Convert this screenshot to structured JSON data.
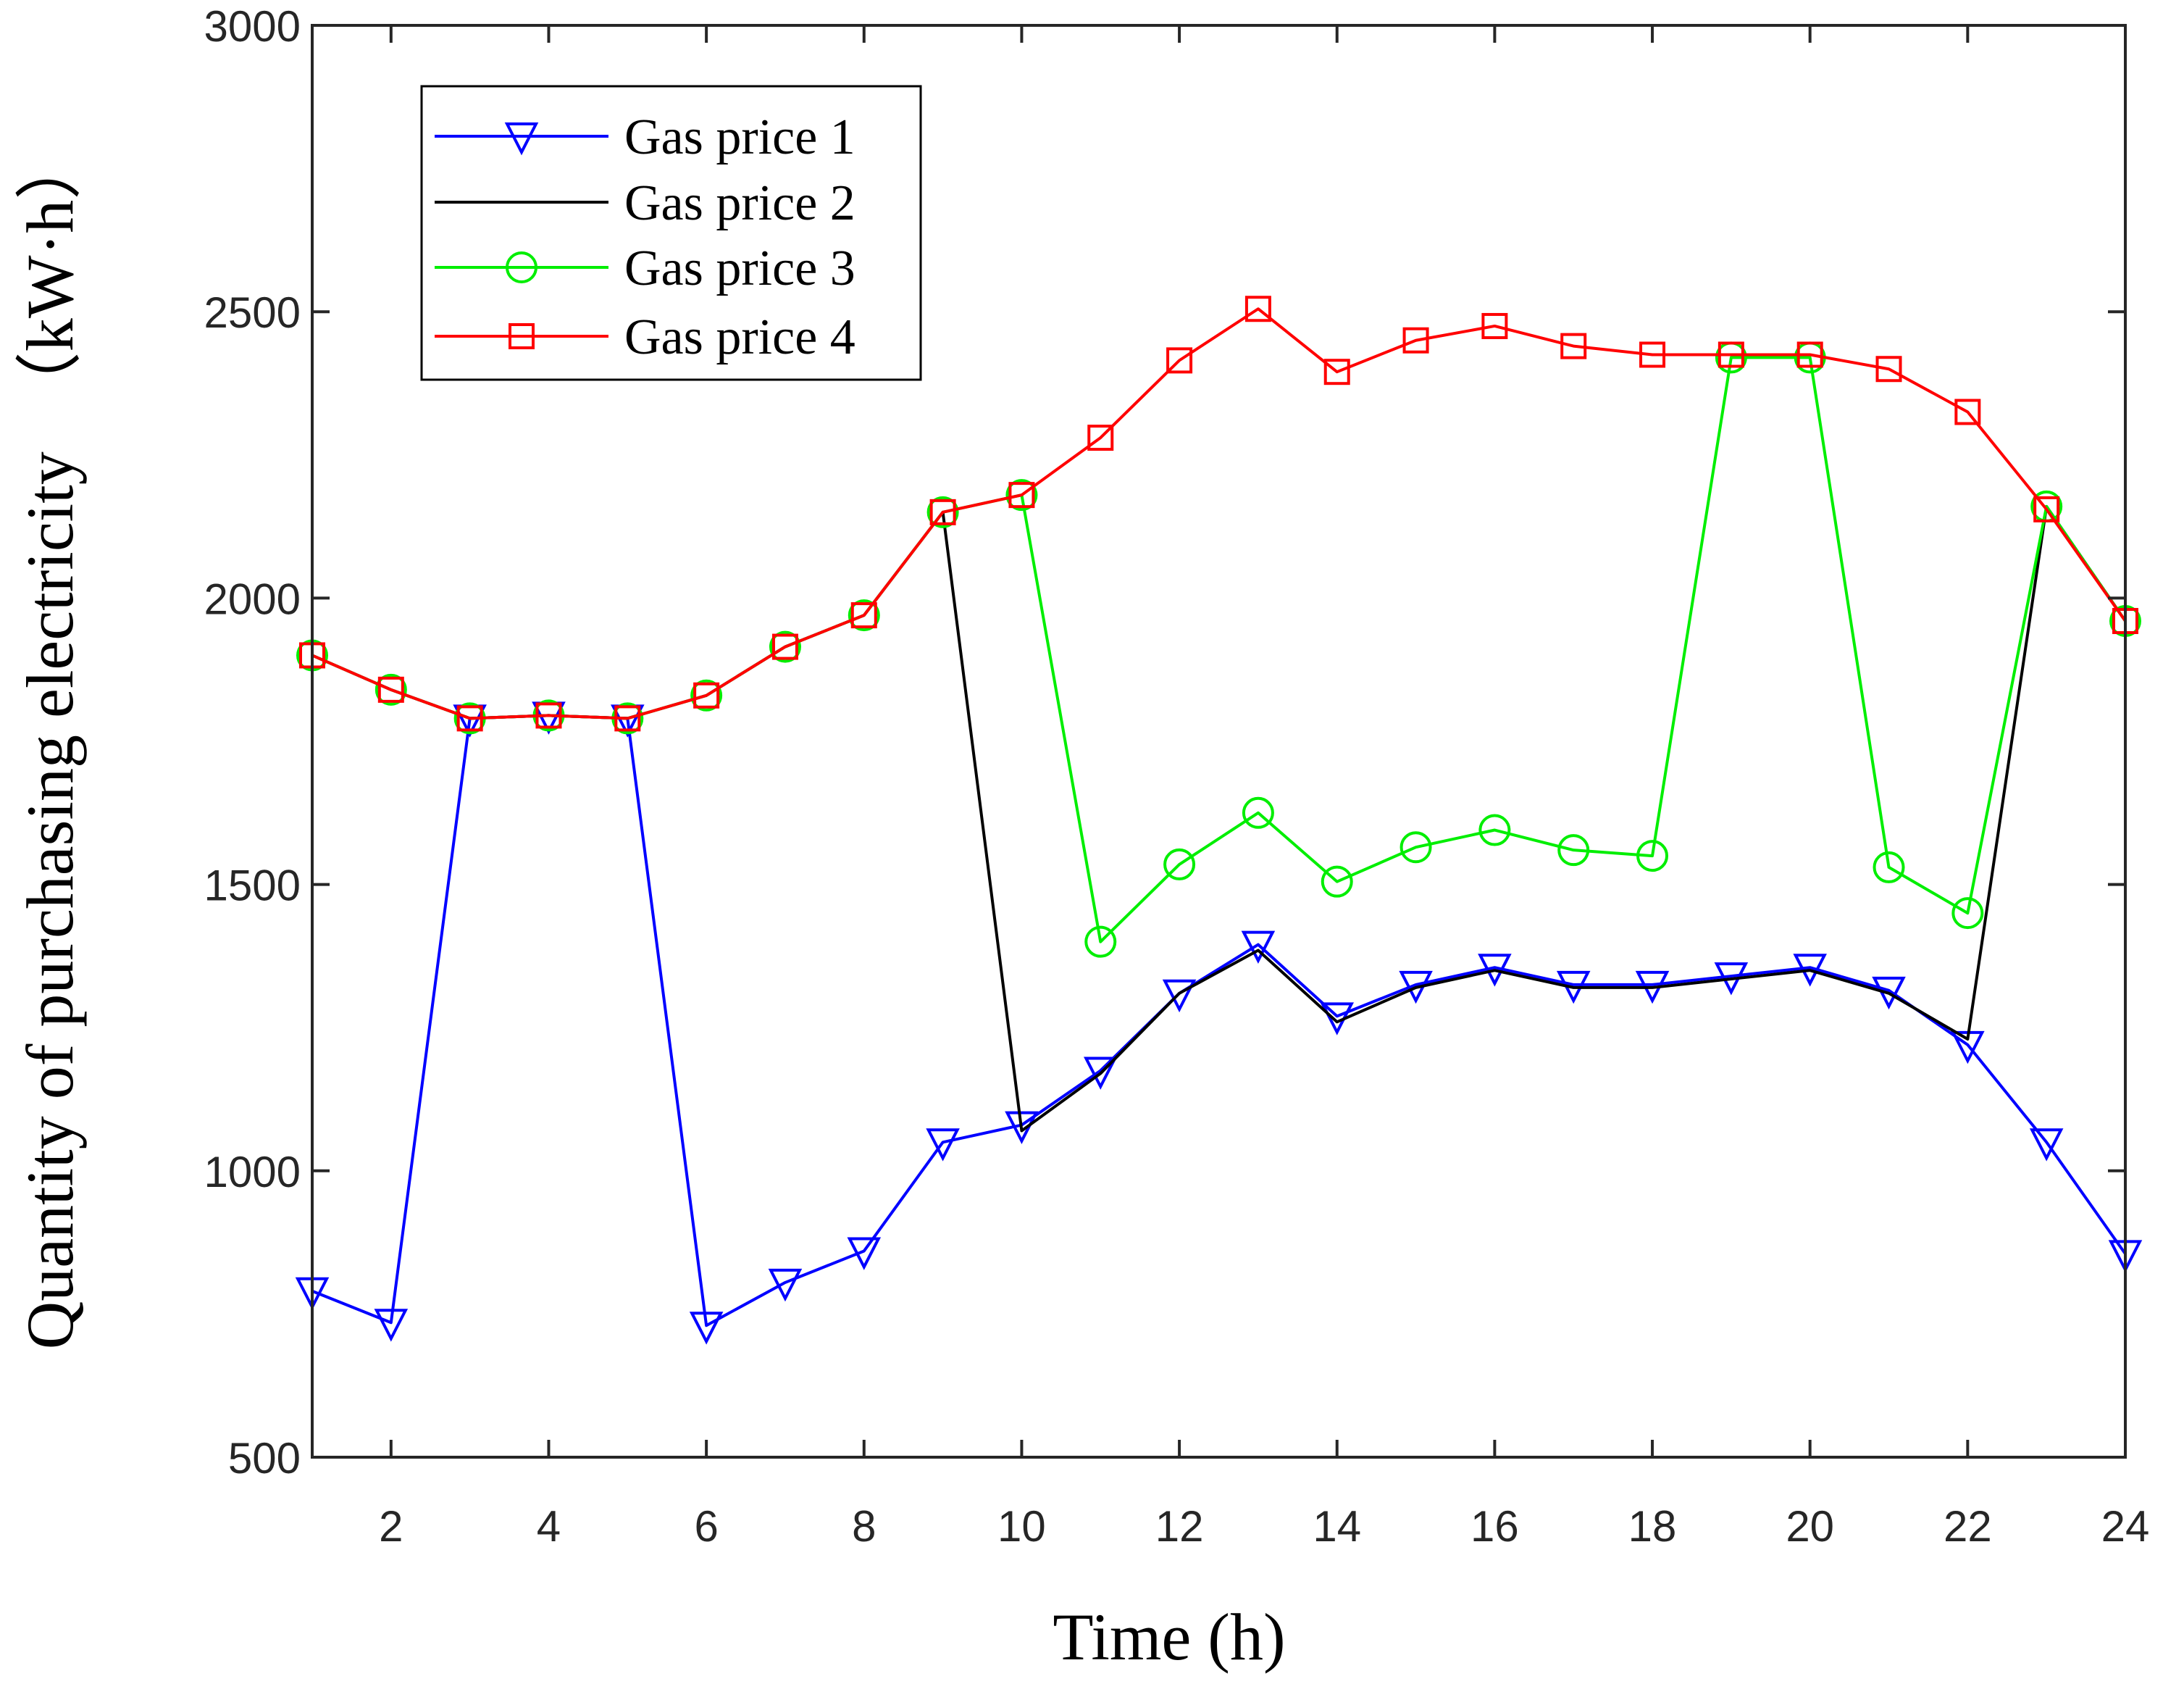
{
  "chart_data": {
    "type": "line",
    "title": "",
    "xlabel": "Time (h)",
    "ylabel": "Quantity of purchasing electricity　（kW·h）",
    "xlim": [
      1,
      24
    ],
    "ylim": [
      500,
      3000
    ],
    "xticks": [
      2,
      4,
      6,
      8,
      10,
      12,
      14,
      16,
      18,
      20,
      22,
      24
    ],
    "yticks": [
      500,
      1000,
      1500,
      2000,
      2500,
      3000
    ],
    "grid": false,
    "legend_position": "top-left",
    "x": [
      1,
      2,
      3,
      4,
      5,
      6,
      7,
      8,
      9,
      10,
      11,
      12,
      13,
      14,
      15,
      16,
      17,
      18,
      19,
      20,
      21,
      22,
      23,
      24
    ],
    "series": [
      {
        "name": "Gas price 1",
        "color": "#0000ff",
        "marker": "triangle-down",
        "values": [
          790,
          735,
          1790,
          1795,
          1790,
          730,
          805,
          860,
          1050,
          1080,
          1175,
          1310,
          1395,
          1270,
          1325,
          1355,
          1325,
          1325,
          1340,
          1355,
          1315,
          1220,
          1050,
          855
        ]
      },
      {
        "name": "Gas price 2",
        "color": "#000000",
        "marker": "none",
        "values": [
          1900,
          1840,
          1790,
          1795,
          1790,
          1830,
          1915,
          1970,
          2150,
          1070,
          1170,
          1310,
          1385,
          1260,
          1320,
          1350,
          1320,
          1320,
          1335,
          1350,
          1310,
          1230,
          2160,
          1960
        ]
      },
      {
        "name": "Gas price 3",
        "color": "#00ee00",
        "marker": "circle",
        "values": [
          1900,
          1840,
          1790,
          1795,
          1790,
          1830,
          1915,
          1970,
          2150,
          2180,
          1400,
          1535,
          1625,
          1505,
          1565,
          1595,
          1560,
          1550,
          2420,
          2420,
          1530,
          1450,
          2160,
          1960
        ]
      },
      {
        "name": "Gas price 4",
        "color": "#ff0000",
        "marker": "square",
        "values": [
          1900,
          1840,
          1790,
          1795,
          1790,
          1830,
          1915,
          1970,
          2150,
          2180,
          2280,
          2415,
          2505,
          2395,
          2450,
          2475,
          2440,
          2425,
          2425,
          2425,
          2400,
          2325,
          2155,
          1960
        ]
      }
    ]
  }
}
